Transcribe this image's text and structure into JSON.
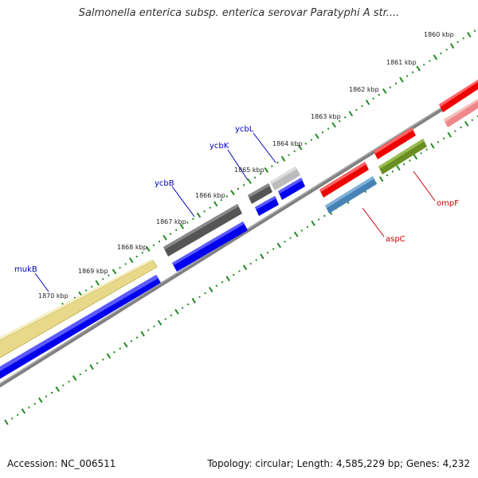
{
  "title": "Salmonella enterica subsp. enterica serovar Paratyphi A str....",
  "footer": {
    "accession": "Accession: NC_006511",
    "topology": "Topology: circular; Length: 4,585,229 bp; Genes: 4,232"
  },
  "ticks": [
    "1860 kbp",
    "1861 kbp",
    "1862 kbp",
    "1863 kbp",
    "1864 kbp",
    "1865 kbp",
    "1866 kbp",
    "1867 kbp",
    "1868 kbp",
    "1869 kbp",
    "1870 kbp"
  ],
  "genes": [
    {
      "name": "mukB",
      "strand": "forward",
      "color": "#e8d98a",
      "label_color": "#0000bb"
    },
    {
      "name": "ycbB",
      "strand": "forward",
      "color": "#555555",
      "label_color": "#0000bb"
    },
    {
      "name": "ycbK",
      "strand": "forward",
      "color": "#555555",
      "label_color": "#0000bb"
    },
    {
      "name": "ycbL",
      "strand": "forward",
      "color": "#bbbbbb",
      "label_color": "#0000bb"
    },
    {
      "name": "aspC",
      "strand": "reverse",
      "color": "#4682b4",
      "label_color": "#cc0000"
    },
    {
      "name": "ompF",
      "strand": "reverse",
      "color": "#6b8e23",
      "label_color": "#cc0000"
    }
  ],
  "colors": {
    "backbone": "#808080",
    "cds": "#0000ee",
    "rna_red": "#ee0000",
    "rna_pink": "#ee8888",
    "tick": "#228b22"
  }
}
